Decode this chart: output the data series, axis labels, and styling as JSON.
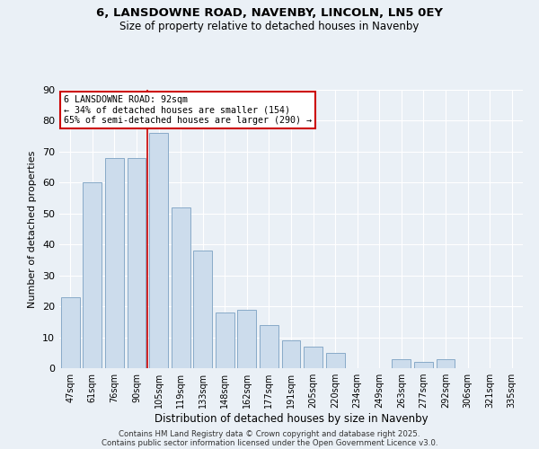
{
  "title1": "6, LANSDOWNE ROAD, NAVENBY, LINCOLN, LN5 0EY",
  "title2": "Size of property relative to detached houses in Navenby",
  "xlabel": "Distribution of detached houses by size in Navenby",
  "ylabel": "Number of detached properties",
  "categories": [
    "47sqm",
    "61sqm",
    "76sqm",
    "90sqm",
    "105sqm",
    "119sqm",
    "133sqm",
    "148sqm",
    "162sqm",
    "177sqm",
    "191sqm",
    "205sqm",
    "220sqm",
    "234sqm",
    "249sqm",
    "263sqm",
    "277sqm",
    "292sqm",
    "306sqm",
    "321sqm",
    "335sqm"
  ],
  "values": [
    23,
    60,
    68,
    68,
    76,
    52,
    38,
    18,
    19,
    14,
    9,
    7,
    5,
    0,
    0,
    3,
    2,
    3,
    0,
    0,
    0
  ],
  "bar_color": "#ccdcec",
  "bar_edge_color": "#88aac8",
  "marker_index": 3,
  "marker_color": "#cc0000",
  "annotation_text": "6 LANSDOWNE ROAD: 92sqm\n← 34% of detached houses are smaller (154)\n65% of semi-detached houses are larger (290) →",
  "annotation_box_color": "#cc0000",
  "background_color": "#eaf0f6",
  "grid_color": "#ffffff",
  "footer_line1": "Contains HM Land Registry data © Crown copyright and database right 2025.",
  "footer_line2": "Contains public sector information licensed under the Open Government Licence v3.0.",
  "ylim": [
    0,
    90
  ],
  "yticks": [
    0,
    10,
    20,
    30,
    40,
    50,
    60,
    70,
    80,
    90
  ]
}
